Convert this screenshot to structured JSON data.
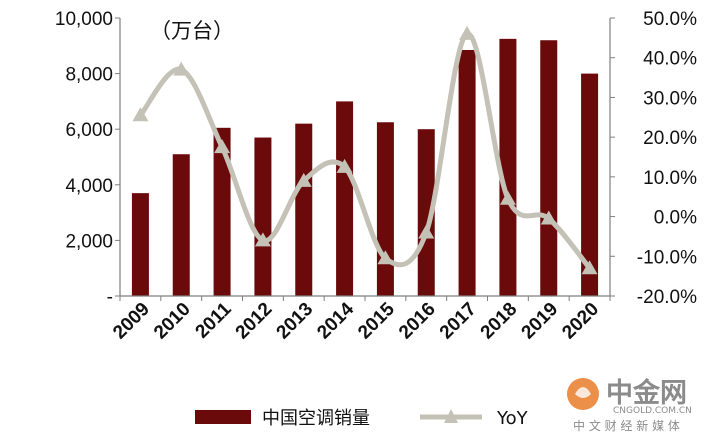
{
  "chart_data": {
    "type": "bar",
    "unit_label": "（万台）",
    "categories": [
      "2009",
      "2010",
      "2011",
      "2012",
      "2013",
      "2014",
      "2015",
      "2016",
      "2017",
      "2018",
      "2019",
      "2020"
    ],
    "series": [
      {
        "name": "中国空调销量",
        "kind": "bar",
        "axis": "left",
        "color": "#6b0a0a",
        "values": [
          3700,
          5100,
          6050,
          5700,
          6200,
          7000,
          6250,
          6000,
          8850,
          9250,
          9200,
          8000
        ]
      },
      {
        "name": "YoY",
        "kind": "line",
        "axis": "right",
        "color": "#c4c1b6",
        "marker": "triangle",
        "values": [
          25.5,
          37.0,
          17.5,
          -6.0,
          9.0,
          12.5,
          -10.5,
          -4.0,
          46.0,
          4.5,
          -0.5,
          -13.0
        ]
      }
    ],
    "y_left": {
      "ylim": [
        0,
        10000
      ],
      "ticks": [
        0,
        2000,
        4000,
        6000,
        8000,
        10000
      ],
      "tick_labels": [
        "-",
        "2,000",
        "4,000",
        "6,000",
        "8,000",
        "10,000"
      ]
    },
    "y_right": {
      "ylim": [
        -20,
        50
      ],
      "ticks": [
        -20,
        -10,
        0,
        10,
        20,
        30,
        40,
        50
      ],
      "tick_labels": [
        "-20.0%",
        "-10.0%",
        "0.0%",
        "10.0%",
        "20.0%",
        "30.0%",
        "40.0%",
        "50.0%"
      ]
    },
    "legend_position": "bottom",
    "grid": false
  },
  "watermark": {
    "logo_text": "中金网",
    "domain": "CNGOLD.COM.CN",
    "tagline": "中 文 财 经 新 媒 体",
    "logo_color": "#e87c2a"
  }
}
